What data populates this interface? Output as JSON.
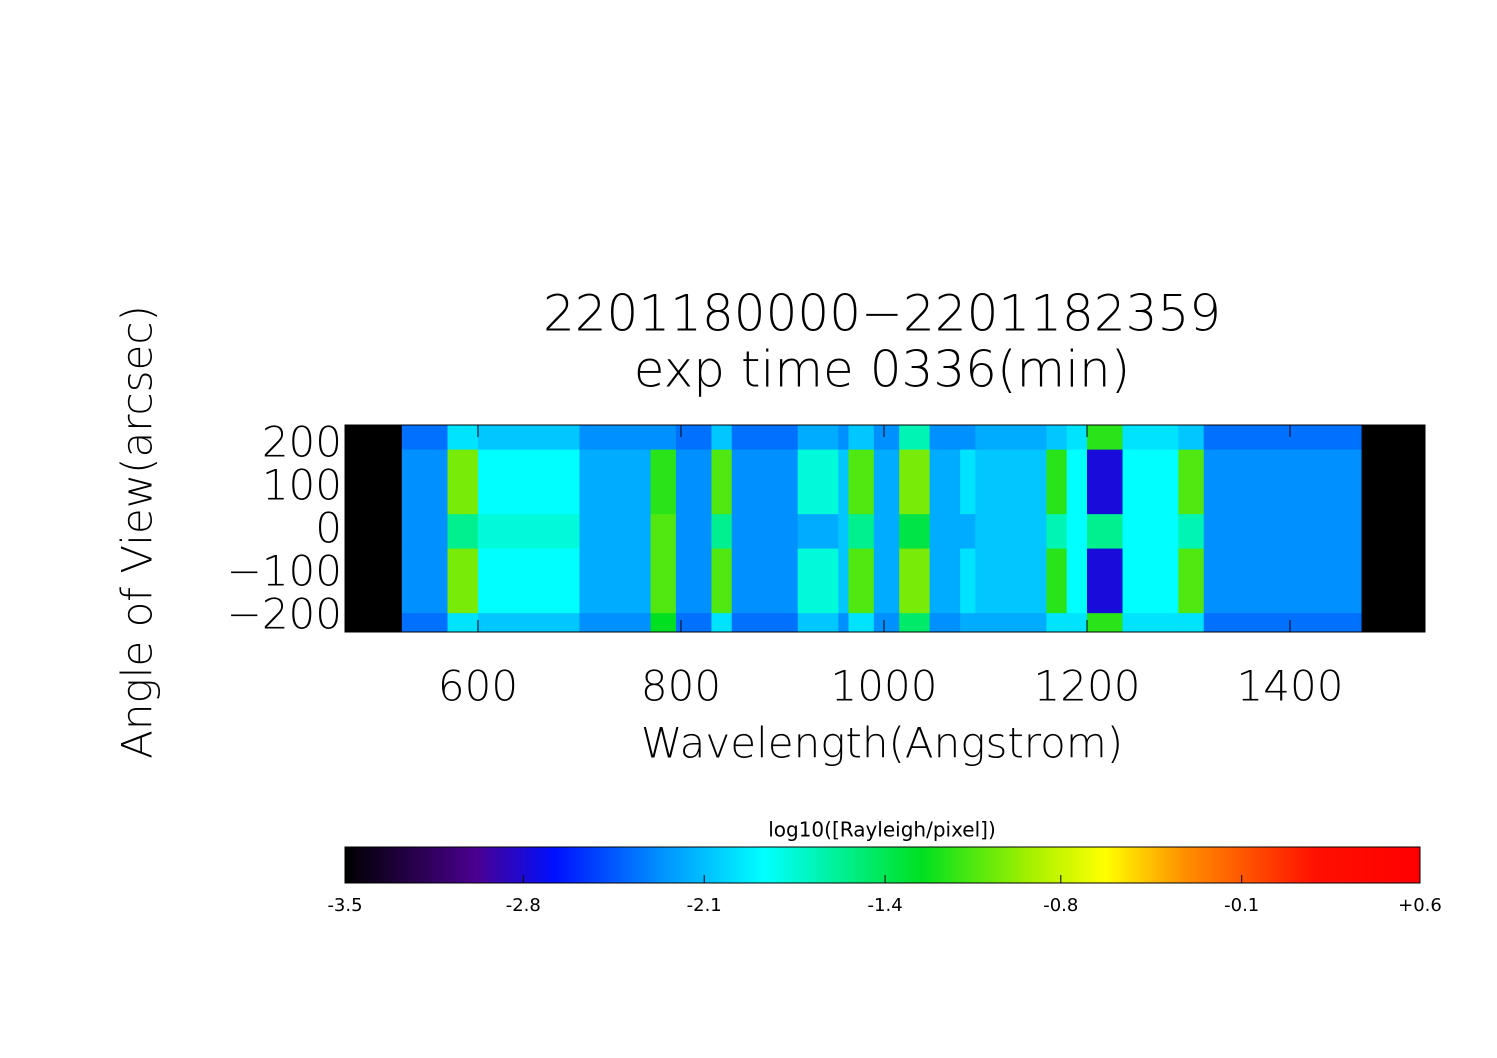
{
  "chart_data": {
    "type": "heatmap",
    "title": "2201180000−2201182359",
    "subtitle": "exp time 0336(min)",
    "x_label": "Wavelength(Angstrom)",
    "y_label": "Angle of View(arcsec)",
    "xlim": [
      469,
      1533
    ],
    "ylim": [
      -235,
      246
    ],
    "xticks": [
      600,
      800,
      1000,
      1200,
      1400
    ],
    "yticks": [
      {
        "value": -200,
        "label": "−200"
      },
      {
        "value": -100,
        "label": "−100"
      },
      0,
      100,
      200
    ],
    "xedges": [
      525,
      570,
      600,
      700,
      770,
      795,
      830,
      850,
      915,
      955,
      965,
      990,
      1015,
      1045,
      1075,
      1090,
      1160,
      1180,
      1200,
      1235,
      1255,
      1290,
      1315,
      1470
    ],
    "yedges": [
      -235,
      -190,
      -40,
      40,
      190,
      246
    ],
    "values": [
      [
        -2.4,
        -2.0,
        -2.1,
        -2.3,
        -1.3,
        -2.4,
        -2.0,
        -2.4,
        -2.1,
        -2.3,
        -2.0,
        -2.3,
        -1.5,
        -2.3,
        -2.2,
        -2.2,
        -2.0,
        -2.0,
        -1.2,
        -2.0,
        -2.0,
        -2.0,
        -2.4
      ],
      [
        -2.3,
        -1.0,
        -1.9,
        -2.2,
        -1.1,
        -2.3,
        -1.1,
        -2.3,
        -1.8,
        -2.1,
        -1.1,
        -2.2,
        -1.0,
        -2.2,
        -2.0,
        -2.1,
        -1.2,
        -1.9,
        -2.8,
        -1.9,
        -1.9,
        -1.1,
        -2.3
      ],
      [
        -2.3,
        -1.6,
        -1.8,
        -2.2,
        -1.1,
        -2.3,
        -1.6,
        -2.3,
        -2.2,
        -2.1,
        -1.6,
        -2.2,
        -1.4,
        -2.2,
        -2.2,
        -2.1,
        -1.7,
        -1.9,
        -1.6,
        -1.9,
        -1.9,
        -1.7,
        -2.3
      ],
      [
        -2.3,
        -1.0,
        -1.9,
        -2.2,
        -1.2,
        -2.3,
        -1.1,
        -2.3,
        -1.8,
        -2.1,
        -1.1,
        -2.2,
        -1.0,
        -2.2,
        -2.0,
        -2.1,
        -1.2,
        -1.9,
        -2.8,
        -1.9,
        -1.9,
        -1.1,
        -2.3
      ],
      [
        -2.4,
        -2.0,
        -2.1,
        -2.3,
        -2.3,
        -2.4,
        -2.1,
        -2.4,
        -2.2,
        -2.3,
        -2.1,
        -2.3,
        -1.7,
        -2.3,
        -2.3,
        -2.2,
        -2.1,
        -2.0,
        -1.2,
        -2.0,
        -2.0,
        -2.1,
        -2.4
      ]
    ],
    "colorbar": {
      "title": "log10([Rayleigh/pixel])",
      "lim": [
        -3.5,
        0.6
      ],
      "ticks": [
        -3.5,
        {
          "value": -2.82,
          "label": "-2.8"
        },
        {
          "value": -2.13,
          "label": "-2.1"
        },
        {
          "value": -1.44,
          "label": "-1.4"
        },
        {
          "value": -0.77,
          "label": "-0.8"
        },
        {
          "value": -0.08,
          "label": "-0.1"
        },
        {
          "value": 0.6,
          "label": "+0.6"
        }
      ],
      "colormap": [
        {
          "value": -3.5,
          "color": "#000000"
        },
        {
          "value": -3.0,
          "color": "#4a0090"
        },
        {
          "value": -2.7,
          "color": "#0010ff"
        },
        {
          "value": -2.3,
          "color": "#0090ff"
        },
        {
          "value": -1.9,
          "color": "#00ffff"
        },
        {
          "value": -1.3,
          "color": "#00e020"
        },
        {
          "value": -0.9,
          "color": "#a0f000"
        },
        {
          "value": -0.6,
          "color": "#ffff00"
        },
        {
          "value": -0.3,
          "color": "#ff9000"
        },
        {
          "value": 0.2,
          "color": "#ff1000"
        },
        {
          "value": 0.6,
          "color": "#ff0000"
        }
      ]
    }
  }
}
